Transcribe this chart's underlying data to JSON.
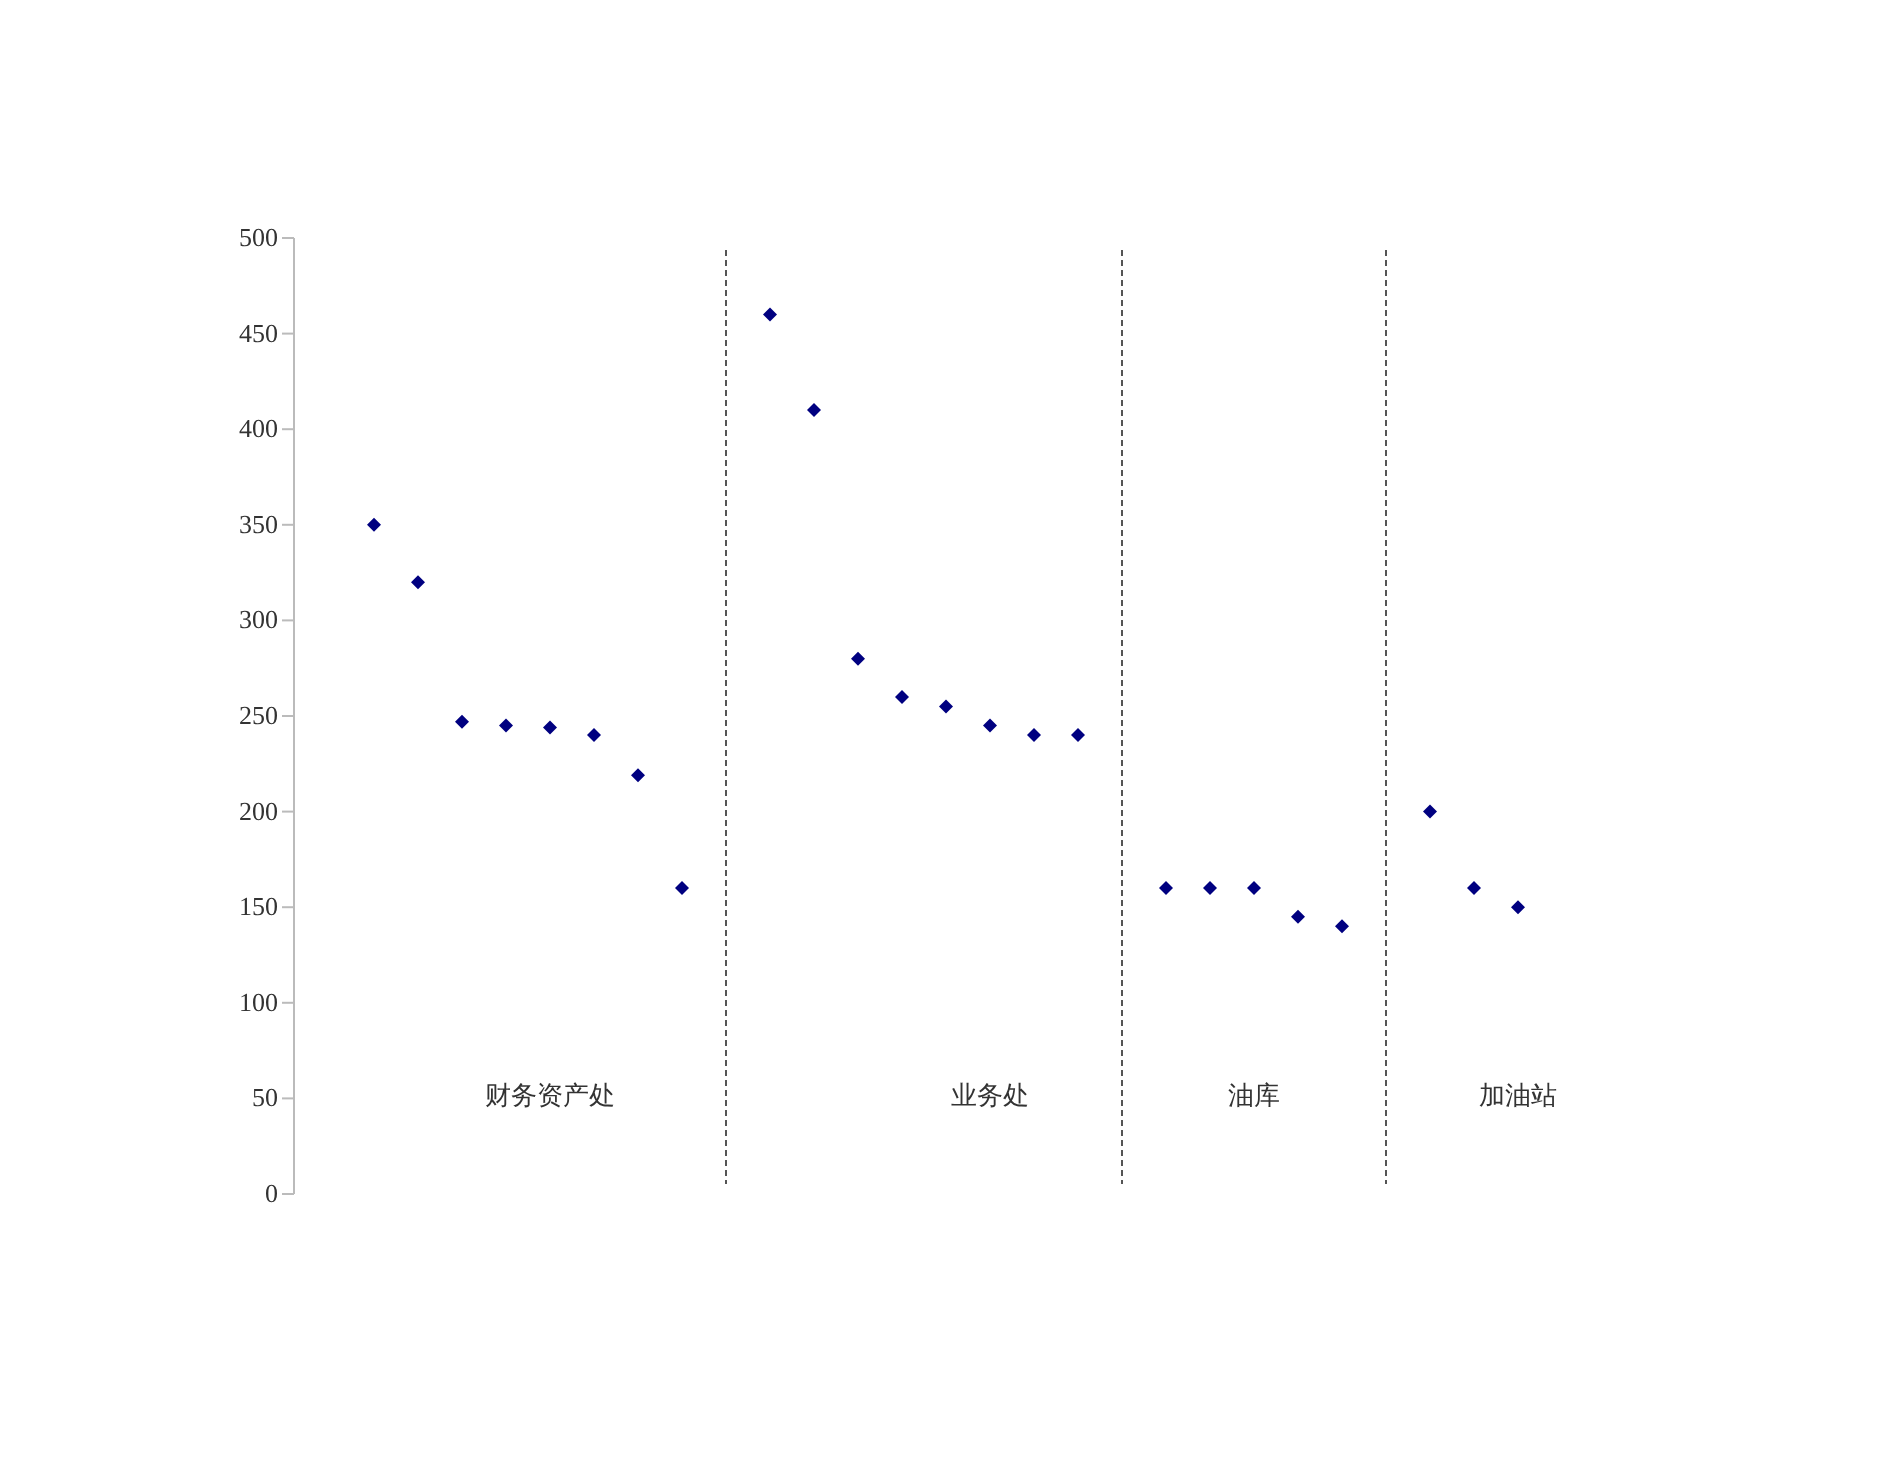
{
  "chart_data": {
    "type": "scatter",
    "categories": [
      null,
      null,
      null,
      null,
      "财务资产处",
      null,
      null,
      null,
      null,
      null,
      null,
      null,
      null,
      null,
      "业务处",
      null,
      null,
      null,
      null,
      null,
      "油库",
      null,
      null,
      null,
      null,
      null,
      "加油站"
    ],
    "values": [
      350,
      320,
      247,
      245,
      244,
      240,
      219,
      160,
      null,
      460,
      410,
      280,
      260,
      255,
      245,
      240,
      240,
      null,
      160,
      160,
      160,
      145,
      140,
      null,
      200,
      160,
      150
    ],
    "color": "#000080",
    "marker": "diamond",
    "grid": "x",
    "ylim": [
      0,
      500
    ],
    "yticks": [
      0,
      50,
      100,
      150,
      200,
      250,
      300,
      350,
      400,
      450,
      500
    ]
  }
}
